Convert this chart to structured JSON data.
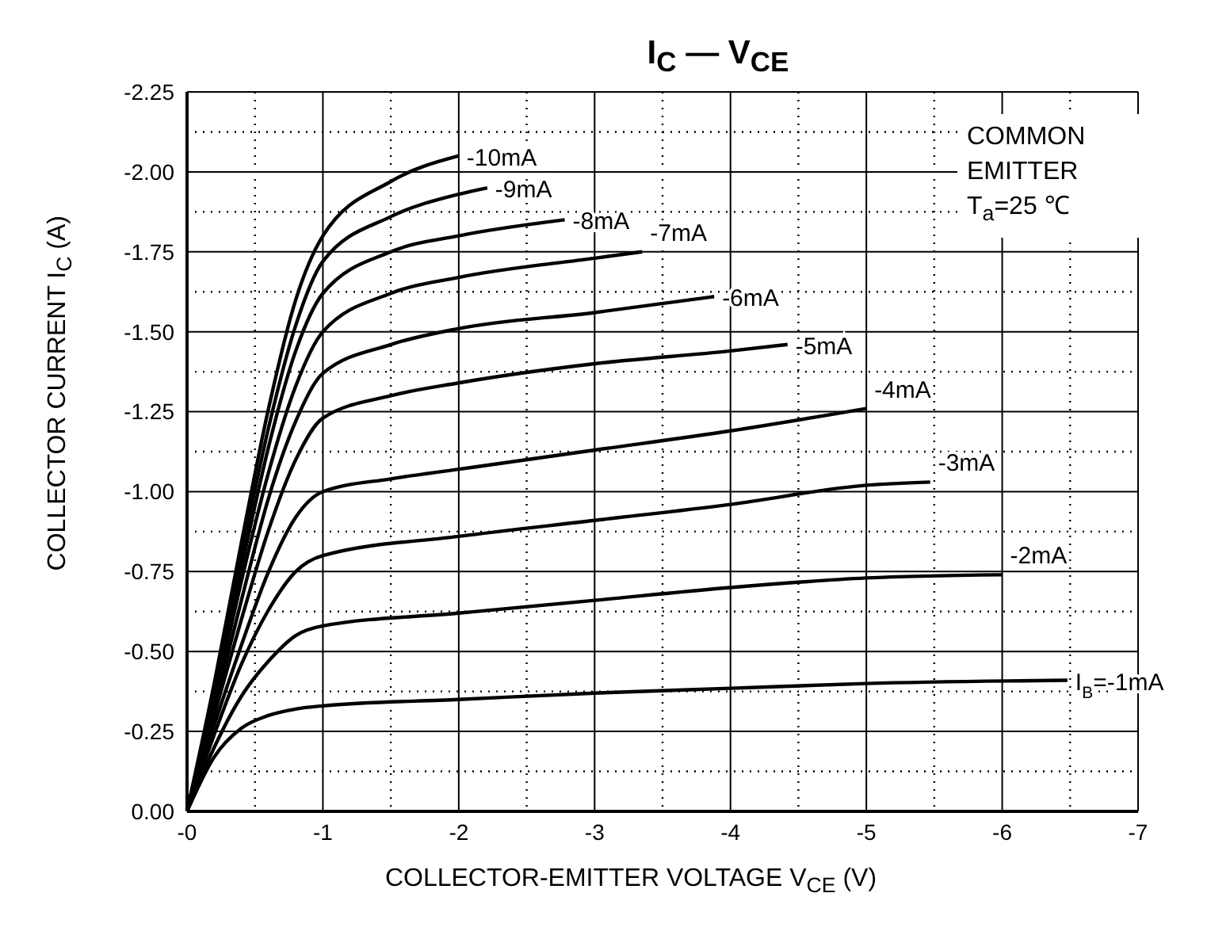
{
  "chart_data": {
    "type": "line",
    "title": "I$_{C}$ — V$_{CE}$",
    "xlabel": "COLLECTOR-EMITTER VOLTAGE   V$_{CE}$   (V)",
    "ylabel": "COLLECTOR CURRENT   I$_{C}$   (A)",
    "annotations": [
      "COMMON\nEMITTER\nT$_{a}$=25 ℃"
    ],
    "xlim": [
      0,
      -7
    ],
    "ylim": [
      0,
      -2.25
    ],
    "xticks": [
      {
        "value": 0,
        "label": "-0"
      },
      {
        "value": -0.5,
        "label": null
      },
      {
        "value": -1,
        "label": "-1"
      },
      {
        "value": -1.5,
        "label": null
      },
      {
        "value": -2,
        "label": "-2"
      },
      {
        "value": -2.5,
        "label": null
      },
      {
        "value": -3,
        "label": "-3"
      },
      {
        "value": -3.5,
        "label": null
      },
      {
        "value": -4,
        "label": "-4"
      },
      {
        "value": -4.5,
        "label": null
      },
      {
        "value": -5,
        "label": "-5"
      },
      {
        "value": -5.5,
        "label": null
      },
      {
        "value": -6,
        "label": "-6"
      },
      {
        "value": -6.5,
        "label": null
      },
      {
        "value": -7,
        "label": "-7"
      }
    ],
    "yticks": [
      {
        "value": 0,
        "label": "0.00"
      },
      {
        "value": -0.125,
        "label": null
      },
      {
        "value": -0.25,
        "label": "-0.25"
      },
      {
        "value": -0.375,
        "label": null
      },
      {
        "value": -0.5,
        "label": "-0.50"
      },
      {
        "value": -0.625,
        "label": null
      },
      {
        "value": -0.75,
        "label": "-0.75"
      },
      {
        "value": -0.875,
        "label": null
      },
      {
        "value": -1,
        "label": "-1.00"
      },
      {
        "value": -1.125,
        "label": null
      },
      {
        "value": -1.25,
        "label": "-1.25"
      },
      {
        "value": -1.375,
        "label": null
      },
      {
        "value": -1.5,
        "label": "-1.50"
      },
      {
        "value": -1.625,
        "label": null
      },
      {
        "value": -1.75,
        "label": "-1.75"
      },
      {
        "value": -1.875,
        "label": null
      },
      {
        "value": -2,
        "label": "-2.00"
      },
      {
        "value": -2.125,
        "label": null
      },
      {
        "value": -2.25,
        "label": "-2.25"
      }
    ],
    "grid": true,
    "marker": "none",
    "line_style": "solid",
    "series": [
      {
        "name": "I$_{B}$=-1mA",
        "color": "#000000",
        "x": [
          0,
          -0.2,
          -0.4,
          -0.6,
          -0.8,
          -1,
          -2,
          -3,
          -4,
          -5,
          -6.48
        ],
        "values": [
          0,
          -0.17,
          -0.26,
          -0.3,
          -0.32,
          -0.33,
          -0.35,
          -0.37,
          -0.385,
          -0.4,
          -0.41
        ]
      },
      {
        "name": "-2mA",
        "color": "#000000",
        "x": [
          0,
          -0.2,
          -0.4,
          -0.6,
          -0.8,
          -1,
          -2,
          -3,
          -4,
          -5,
          -6
        ],
        "values": [
          0,
          -0.2,
          -0.36,
          -0.47,
          -0.55,
          -0.58,
          -0.62,
          -0.66,
          -0.7,
          -0.73,
          -0.74
        ]
      },
      {
        "name": "-3mA",
        "color": "#000000",
        "x": [
          0,
          -0.2,
          -0.4,
          -0.6,
          -0.8,
          -1,
          -2,
          -3,
          -4,
          -5,
          -5.47
        ],
        "values": [
          0,
          -0.24,
          -0.46,
          -0.63,
          -0.75,
          -0.8,
          -0.86,
          -0.91,
          -0.96,
          -1.02,
          -1.03
        ]
      },
      {
        "name": "-4mA",
        "color": "#000000",
        "x": [
          0,
          -0.2,
          -0.4,
          -0.6,
          -0.8,
          -1,
          -1.5,
          -2,
          -3,
          -4,
          -5
        ],
        "values": [
          0,
          -0.27,
          -0.52,
          -0.75,
          -0.92,
          -1,
          -1.04,
          -1.07,
          -1.13,
          -1.19,
          -1.26
        ]
      },
      {
        "name": "-5mA",
        "color": "#000000",
        "x": [
          0,
          -0.2,
          -0.4,
          -0.6,
          -0.8,
          -1,
          -1.5,
          -2,
          -3,
          -4,
          -4.42
        ],
        "values": [
          0,
          -0.3,
          -0.6,
          -0.88,
          -1.1,
          -1.23,
          -1.3,
          -1.34,
          -1.4,
          -1.44,
          -1.46
        ]
      },
      {
        "name": "-6mA",
        "color": "#000000",
        "x": [
          0,
          -0.2,
          -0.4,
          -0.6,
          -0.8,
          -1,
          -1.5,
          -2,
          -3,
          -3.88
        ],
        "values": [
          0,
          -0.32,
          -0.66,
          -0.98,
          -1.22,
          -1.37,
          -1.46,
          -1.51,
          -1.56,
          -1.61
        ]
      },
      {
        "name": "-7mA",
        "color": "#000000",
        "x": [
          0,
          -0.2,
          -0.4,
          -0.6,
          -0.8,
          -1,
          -1.5,
          -2,
          -3,
          -3.35
        ],
        "values": [
          0,
          -0.34,
          -0.72,
          -1.06,
          -1.33,
          -1.5,
          -1.62,
          -1.67,
          -1.73,
          -1.75
        ]
      },
      {
        "name": "-8mA",
        "color": "#000000",
        "x": [
          0,
          -0.2,
          -0.4,
          -0.6,
          -0.8,
          -1,
          -1.5,
          -2,
          -2.78
        ],
        "values": [
          0,
          -0.36,
          -0.76,
          -1.14,
          -1.44,
          -1.62,
          -1.75,
          -1.8,
          -1.85
        ]
      },
      {
        "name": "-9mA",
        "color": "#000000",
        "x": [
          0,
          -0.2,
          -0.4,
          -0.6,
          -0.8,
          -1,
          -1.5,
          -2,
          -2.21
        ],
        "values": [
          0,
          -0.38,
          -0.8,
          -1.2,
          -1.52,
          -1.72,
          -1.86,
          -1.93,
          -1.95
        ]
      },
      {
        "name": "-10mA",
        "color": "#000000",
        "x": [
          0,
          -0.2,
          -0.4,
          -0.6,
          -0.8,
          -1,
          -1.5,
          -2
        ],
        "values": [
          0,
          -0.4,
          -0.84,
          -1.26,
          -1.6,
          -1.8,
          -1.97,
          -2.05
        ]
      }
    ]
  }
}
